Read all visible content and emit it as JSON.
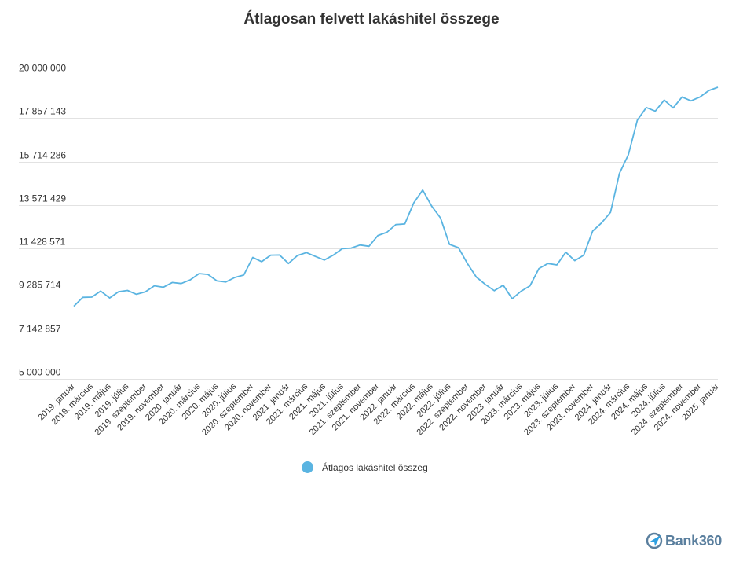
{
  "colors": {
    "series": "#5ab4e1",
    "grid": "#e2e2e2",
    "text": "#333333",
    "logo": "#5a7f9e",
    "logo_accent": "#2e9fe0"
  },
  "logo": {
    "text": "Bank360",
    "icon": "bank360-logo-icon"
  },
  "chart_data": {
    "type": "line",
    "title": "Átlagosan felvett lakáshitel összege",
    "xlabel": "",
    "ylabel": "",
    "ylim": [
      5000000,
      20000000
    ],
    "yticks": [
      "20 000 000",
      "17 857 143",
      "15 714 286",
      "13 571 429",
      "11 428 571",
      "9 285 714",
      "7 142 857",
      "5 000 000"
    ],
    "ytick_values": [
      20000000,
      17857143,
      15714286,
      13571429,
      11428571,
      9285714,
      7142857,
      5000000
    ],
    "grid": true,
    "legend_position": "bottom-center",
    "categories": [
      "2019. január",
      "2019. február",
      "2019. március",
      "2019. április",
      "2019. május",
      "2019. június",
      "2019. július",
      "2019. augusztus",
      "2019. szeptember",
      "2019. október",
      "2019. november",
      "2019. december",
      "2020. január",
      "2020. február",
      "2020. március",
      "2020. április",
      "2020. május",
      "2020. június",
      "2020. július",
      "2020. augusztus",
      "2020. szeptember",
      "2020. október",
      "2020. november",
      "2020. december",
      "2021. január",
      "2021. február",
      "2021. március",
      "2021. április",
      "2021. május",
      "2021. június",
      "2021. július",
      "2021. augusztus",
      "2021. szeptember",
      "2021. október",
      "2021. november",
      "2021. december",
      "2022. január",
      "2022. február",
      "2022. március",
      "2022. április",
      "2022. május",
      "2022. június",
      "2022. július",
      "2022. augusztus",
      "2022. szeptember",
      "2022. október",
      "2022. november",
      "2022. december",
      "2023. január",
      "2023. február",
      "2023. március",
      "2023. április",
      "2023. május",
      "2023. június",
      "2023. július",
      "2023. augusztus",
      "2023. szeptember",
      "2023. október",
      "2023. november",
      "2023. december",
      "2024. január",
      "2024. február",
      "2024. március",
      "2024. április",
      "2024. május",
      "2024. június",
      "2024. július",
      "2024. augusztus",
      "2024. szeptember",
      "2024. október",
      "2024. november",
      "2024. december",
      "2025. január"
    ],
    "x_tick_labels": [
      "2019. január",
      "2019. március",
      "2019. május",
      "2019. július",
      "2019. szeptember",
      "2019. november",
      "2020. január",
      "2020. március",
      "2020. május",
      "2020. július",
      "2020. szeptember",
      "2020. november",
      "2021. január",
      "2021. március",
      "2021. május",
      "2021. július",
      "2021. szeptember",
      "2021. november",
      "2022. január",
      "2022. március",
      "2022. május",
      "2022. július",
      "2022. szeptember",
      "2022. november",
      "2023. január",
      "2023. március",
      "2023. május",
      "2023. július",
      "2023. szeptember",
      "2023. november",
      "2024. január",
      "2024. március",
      "2024. május",
      "2024. július",
      "2024. szeptember",
      "2024. november",
      "2025. január"
    ],
    "series": [
      {
        "name": "Átlagos lakáshitel összeg",
        "values": [
          8580000,
          9020000,
          9030000,
          9330000,
          8990000,
          9300000,
          9360000,
          9170000,
          9290000,
          9590000,
          9520000,
          9750000,
          9700000,
          9880000,
          10190000,
          10150000,
          9830000,
          9780000,
          10000000,
          10120000,
          10990000,
          10780000,
          11100000,
          11110000,
          10690000,
          11080000,
          11230000,
          11040000,
          10860000,
          11100000,
          11420000,
          11450000,
          11600000,
          11540000,
          12070000,
          12230000,
          12610000,
          12640000,
          13680000,
          14310000,
          13520000,
          12930000,
          11630000,
          11470000,
          10690000,
          10020000,
          9660000,
          9350000,
          9620000,
          8950000,
          9320000,
          9590000,
          10440000,
          10690000,
          10620000,
          11250000,
          10830000,
          11100000,
          12290000,
          12690000,
          13210000,
          15130000,
          16060000,
          17760000,
          18380000,
          18200000,
          18750000,
          18360000,
          18900000,
          18710000,
          18900000,
          19220000,
          19380000
        ]
      }
    ]
  }
}
